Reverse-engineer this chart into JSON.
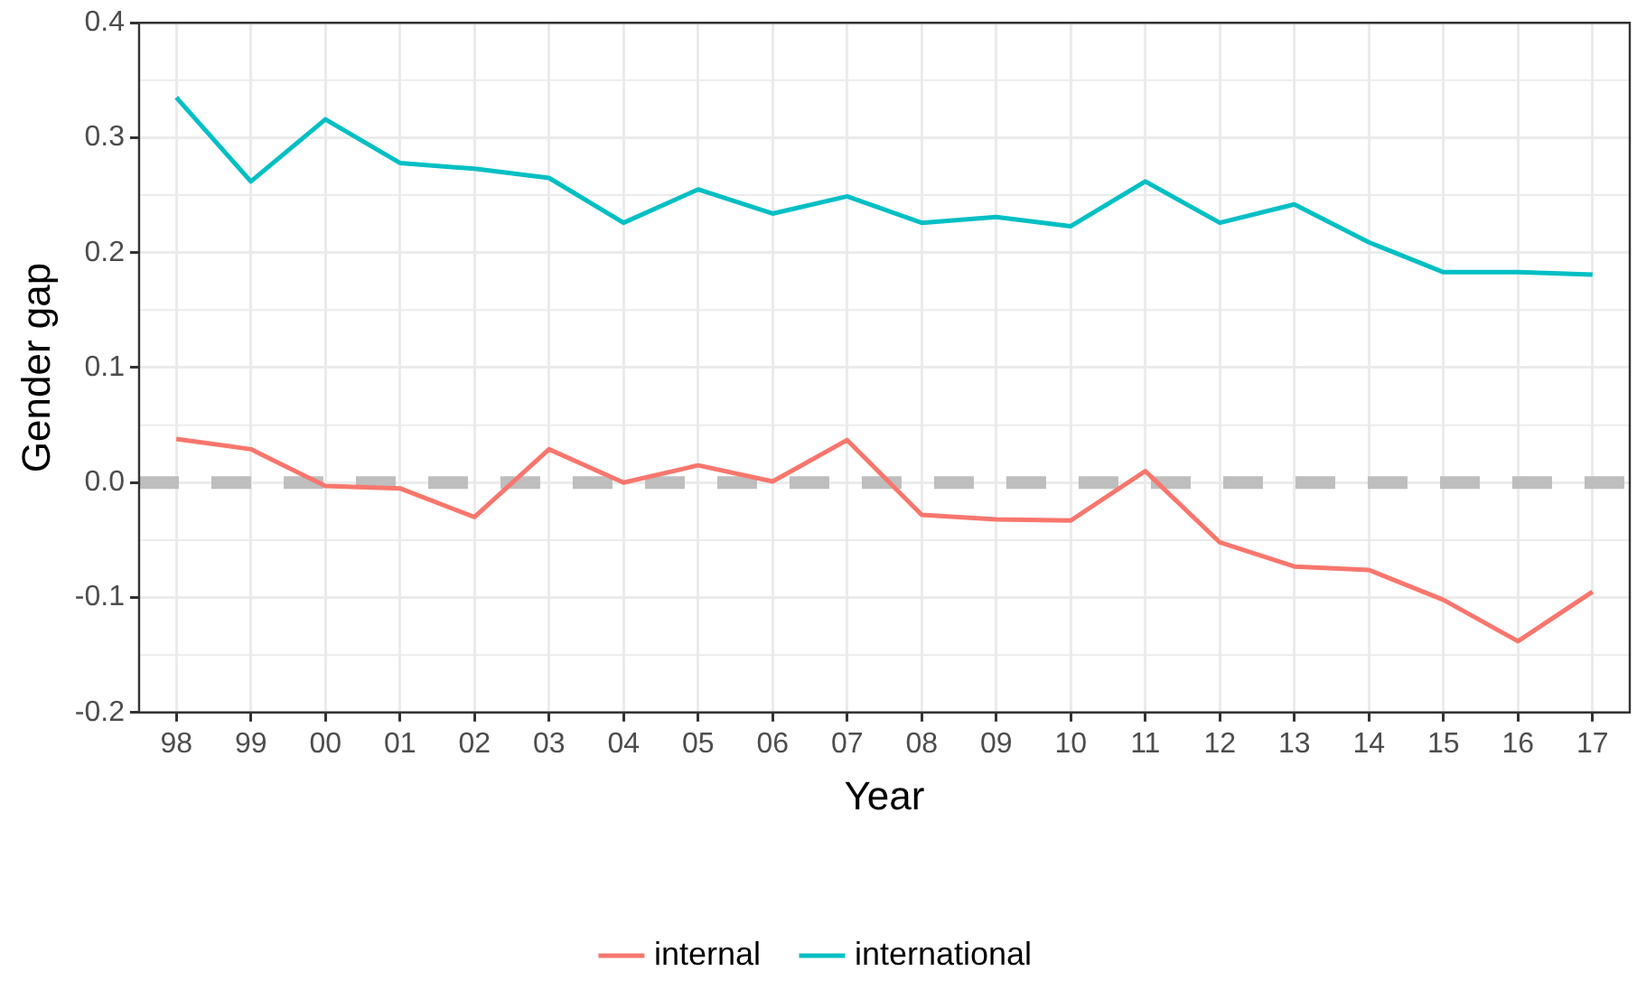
{
  "chart_data": {
    "type": "line",
    "xlabel": "Year",
    "ylabel": "Gender gap",
    "categories": [
      "98",
      "99",
      "00",
      "01",
      "02",
      "03",
      "04",
      "05",
      "06",
      "07",
      "08",
      "09",
      "10",
      "11",
      "12",
      "13",
      "14",
      "15",
      "16",
      "17"
    ],
    "series": [
      {
        "name": "internal",
        "color": "#f8766d",
        "values": [
          0.038,
          0.029,
          -0.003,
          -0.005,
          -0.03,
          0.029,
          0,
          0.015,
          0.001,
          0.037,
          -0.028,
          -0.032,
          -0.033,
          0.01,
          -0.052,
          -0.073,
          -0.076,
          -0.102,
          -0.138,
          -0.095
        ]
      },
      {
        "name": "international",
        "color": "#00bfc4",
        "values": [
          0.335,
          0.262,
          0.316,
          0.278,
          0.273,
          0.265,
          0.226,
          0.255,
          0.234,
          0.249,
          0.226,
          0.231,
          0.223,
          0.262,
          0.226,
          0.242,
          0.209,
          0.183,
          0.183,
          0.181
        ]
      }
    ],
    "ylim": [
      -0.2,
      0.4
    ],
    "yticks": [
      {
        "value": -0.2,
        "label": "-0.2"
      },
      {
        "value": -0.1,
        "label": "-0.1"
      },
      {
        "value": 0,
        "label": "0.0"
      },
      {
        "value": 0.1,
        "label": "0.1"
      },
      {
        "value": 0.2,
        "label": "0.2"
      },
      {
        "value": 0.3,
        "label": "0.3"
      },
      {
        "value": 0.4,
        "label": "0.4"
      }
    ],
    "ref_lines": [
      {
        "axis": "y",
        "value": 0,
        "color": "#bebebe",
        "line_style": "dashed"
      }
    ],
    "grid": true,
    "legend": "bottom",
    "marker": "none",
    "line_style": "solid"
  }
}
